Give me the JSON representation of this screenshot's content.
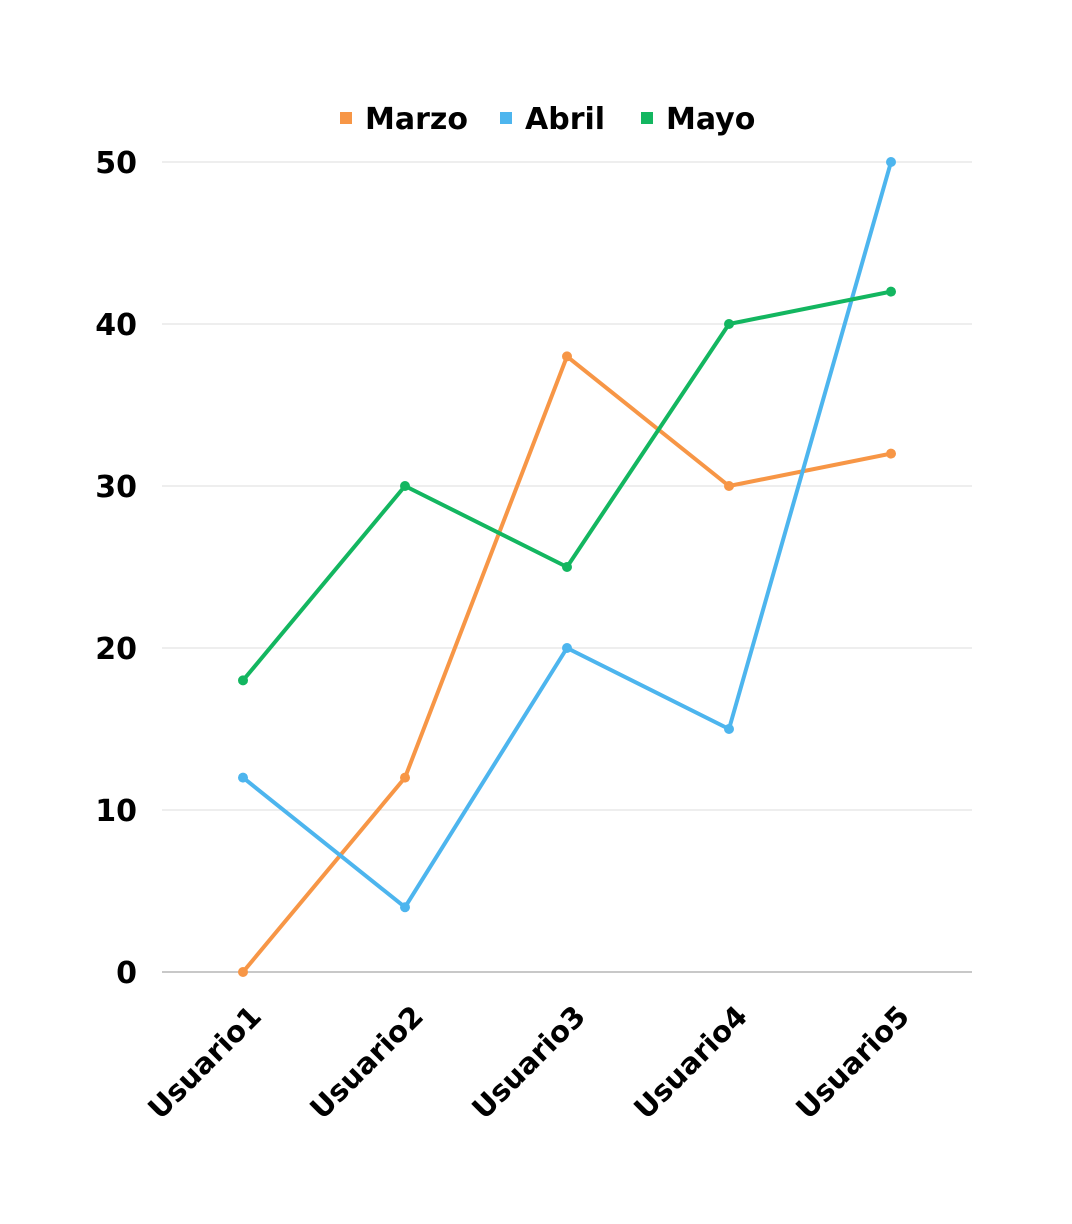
{
  "chart_data": {
    "type": "line",
    "categories": [
      "Usuario1",
      "Usuario2",
      "Usuario3",
      "Usuario4",
      "Usuario5"
    ],
    "series": [
      {
        "name": "Marzo",
        "color": "#F79646",
        "values": [
          0,
          12,
          38,
          30,
          32
        ]
      },
      {
        "name": "Abril",
        "color": "#4DB5EE",
        "values": [
          12,
          4,
          20,
          15,
          50
        ]
      },
      {
        "name": "Mayo",
        "color": "#13B660",
        "values": [
          18,
          30,
          25,
          40,
          42
        ]
      }
    ],
    "yticks": [
      0,
      10,
      20,
      30,
      40,
      50
    ],
    "ylim": [
      0,
      50
    ],
    "grid": true,
    "legend_position": "top-center",
    "x_tick_rotation": "-45deg"
  }
}
